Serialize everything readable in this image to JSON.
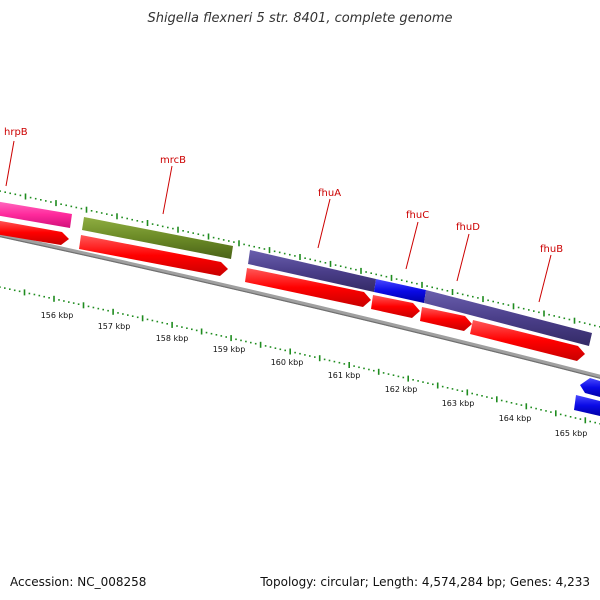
{
  "title": "Shigella flexneri 5 str. 8401, complete genome",
  "footer": {
    "accession": "Accession: NC_008258",
    "summary": "Topology: circular; Length: 4,574,284 bp; Genes: 4,233"
  },
  "gene_labels": [
    "hrpB",
    "mrcB",
    "fhuA",
    "fhuC",
    "fhuD",
    "fhuB"
  ],
  "kbp_labels": [
    "156 kbp",
    "157 kbp",
    "158 kbp",
    "159 kbp",
    "160 kbp",
    "161 kbp",
    "162 kbp",
    "163 kbp",
    "164 kbp",
    "165 kbp"
  ],
  "colors": {
    "cds_red": "#ff0000",
    "hrpB": "#ff2a9c",
    "mrcB": "#6b8a26",
    "fhu_operon": "#4b3f8a",
    "fhuC": "#1a1aee",
    "blue_feature": "#0a0ae6",
    "backbone": "#808080",
    "tick_green": "#1f8c1f",
    "label_red": "#cc0000"
  }
}
